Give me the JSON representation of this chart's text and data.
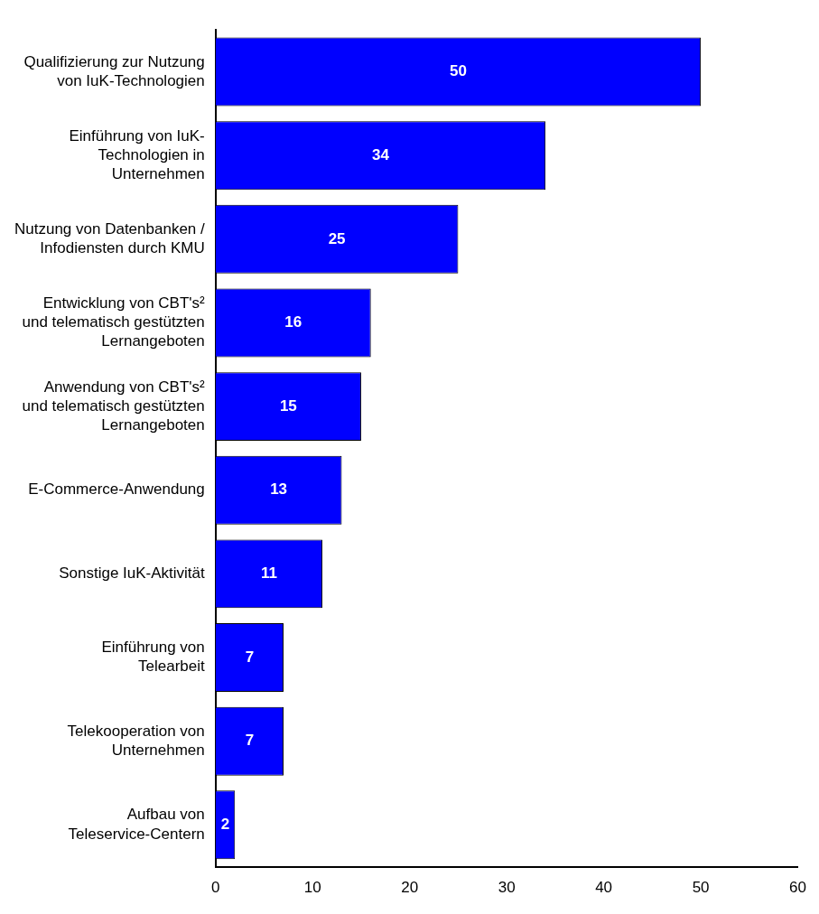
{
  "chart_data": {
    "type": "bar",
    "orientation": "horizontal",
    "categories": [
      "Qualifizierung zur Nutzung\nvon IuK-Technologien",
      "Einführung von IuK-\nTechnologien in\nUnternehmen",
      "Nutzung von Datenbanken /\nInfodiensten durch KMU",
      "Entwicklung von CBT's²\nund telematisch gestützten\nLernangeboten",
      "Anwendung von CBT's²\nund telematisch gestützten\nLernangeboten",
      "E-Commerce-Anwendung",
      "Sonstige IuK-Aktivität",
      "Einführung von\nTelearbeit",
      "Telekooperation von\nUnternehmen",
      "Aufbau von\nTeleservice-Centern"
    ],
    "values": [
      50,
      34,
      25,
      16,
      15,
      13,
      11,
      7,
      7,
      2
    ],
    "color": "#0000ff",
    "xlim": [
      0,
      60
    ],
    "xticks": [
      0,
      10,
      20,
      30,
      40,
      50,
      60
    ],
    "data_labels": true,
    "grid": false,
    "legend": false
  }
}
